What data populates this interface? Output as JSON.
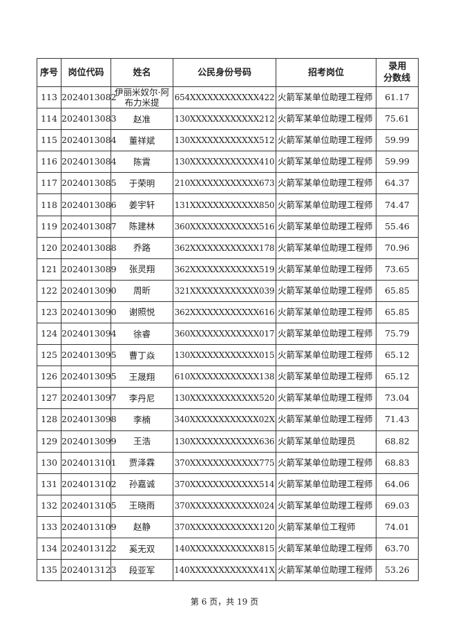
{
  "table": {
    "headers": [
      "序号",
      "岗位代码",
      "姓名",
      "公民身份号码",
      "招考岗位",
      "录用分数线"
    ],
    "header_score_line1": "录用",
    "header_score_line2": "分数线",
    "rows": [
      [
        "113",
        "2024013082",
        "伊丽米奴尔·阿布力米提",
        "654XXXXXXXXXXXX422",
        "火箭军某单位助理工程师",
        "61.17"
      ],
      [
        "114",
        "2024013083",
        "赵准",
        "130XXXXXXXXXXXX212",
        "火箭军某单位助理工程师",
        "75.61"
      ],
      [
        "115",
        "2024013084",
        "董祥斌",
        "130XXXXXXXXXXXX512",
        "火箭军某单位助理工程师",
        "59.99"
      ],
      [
        "116",
        "2024013084",
        "陈霄",
        "130XXXXXXXXXXXX410",
        "火箭军某单位助理工程师",
        "59.99"
      ],
      [
        "117",
        "2024013085",
        "于荣明",
        "210XXXXXXXXXXXX673",
        "火箭军某单位助理工程师",
        "64.37"
      ],
      [
        "118",
        "2024013086",
        "姜宇轩",
        "131XXXXXXXXXXXX850",
        "火箭军某单位助理工程师",
        "74.47"
      ],
      [
        "119",
        "2024013087",
        "陈建林",
        "360XXXXXXXXXXXX516",
        "火箭军某单位助理工程师",
        "55.46"
      ],
      [
        "120",
        "2024013088",
        "乔路",
        "362XXXXXXXXXXXX178",
        "火箭军某单位助理工程师",
        "70.96"
      ],
      [
        "121",
        "2024013089",
        "张灵翔",
        "362XXXXXXXXXXXX519",
        "火箭军某单位助理工程师",
        "73.65"
      ],
      [
        "122",
        "2024013090",
        "周昕",
        "321XXXXXXXXXXXX039",
        "火箭军某单位助理工程师",
        "65.85"
      ],
      [
        "123",
        "2024013090",
        "谢照悦",
        "362XXXXXXXXXXXX616",
        "火箭军某单位助理工程师",
        "65.85"
      ],
      [
        "124",
        "2024013094",
        "徐睿",
        "360XXXXXXXXXXXX017",
        "火箭军某单位助理工程师",
        "75.79"
      ],
      [
        "125",
        "2024013095",
        "曹丁焱",
        "130XXXXXXXXXXXX015",
        "火箭军某单位助理工程师",
        "65.12"
      ],
      [
        "126",
        "2024013095",
        "王晟翔",
        "610XXXXXXXXXXXX138",
        "火箭军某单位助理工程师",
        "65.12"
      ],
      [
        "127",
        "2024013097",
        "李丹尼",
        "130XXXXXXXXXXXX520",
        "火箭军某单位助理工程师",
        "73.04"
      ],
      [
        "128",
        "2024013098",
        "李楠",
        "340XXXXXXXXXXXX02X",
        "火箭军某单位助理工程师",
        "71.43"
      ],
      [
        "129",
        "2024013099",
        "王浩",
        "130XXXXXXXXXXXX636",
        "火箭军某单位助理员",
        "68.82"
      ],
      [
        "130",
        "2024013101",
        "贾泽霖",
        "370XXXXXXXXXXXX775",
        "火箭军某单位助理工程师",
        "68.83"
      ],
      [
        "131",
        "2024013102",
        "孙嘉诚",
        "370XXXXXXXXXXXX514",
        "火箭军某单位助理工程师",
        "64.06"
      ],
      [
        "132",
        "2024013105",
        "王晓雨",
        "370XXXXXXXXXXXX024",
        "火箭军某单位助理工程师",
        "69.03"
      ],
      [
        "133",
        "2024013109",
        "赵静",
        "370XXXXXXXXXXXX120",
        "火箭军某单位工程师",
        "74.01"
      ],
      [
        "134",
        "2024013122",
        "奚无双",
        "140XXXXXXXXXXXX815",
        "火箭军某单位助理工程师",
        "63.70"
      ],
      [
        "135",
        "2024013123",
        "段亚军",
        "140XXXXXXXXXXXX41X",
        "火箭军某单位助理工程师",
        "53.26"
      ]
    ]
  },
  "footer": {
    "page_label": "第 6 页，共 19 页"
  }
}
